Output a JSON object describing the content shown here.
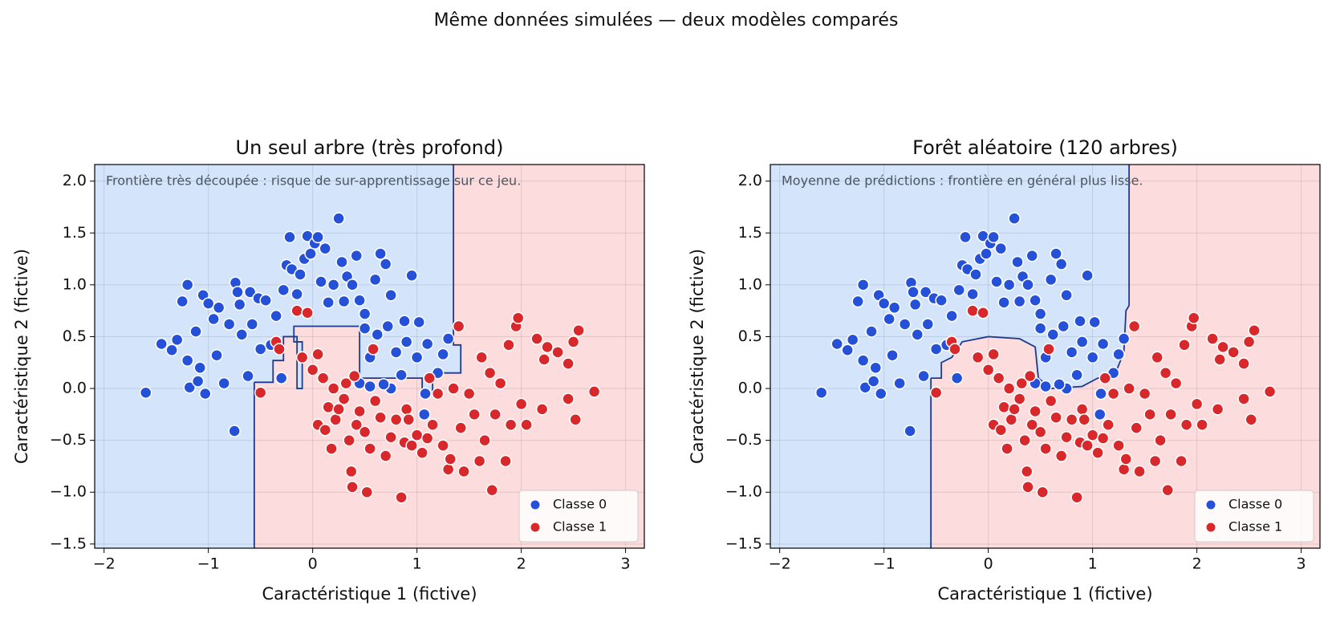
{
  "title": "Même données simulées — deux modèles comparés",
  "chart_data": [
    {
      "type": "scatter",
      "title": "Un seul arbre (très profond)",
      "x_label": "Caractéristique 1 (fictive)",
      "y_label": "Caractéristique 2 (fictive)",
      "annotation": "Frontière très découpée : risque de sur-apprentissage sur ce jeu.",
      "xlim": [
        -2.09,
        3.18
      ],
      "ylim": [
        -1.54,
        2.16
      ],
      "xticks": [
        {
          "value": -2,
          "label": "−2"
        },
        {
          "value": -1,
          "label": "−1"
        },
        0,
        1,
        2,
        3
      ],
      "yticks": [
        {
          "value": -1.5,
          "label": "−1.5"
        },
        {
          "value": -1,
          "label": "−1.0"
        },
        {
          "value": -0.5,
          "label": "−0.5"
        },
        {
          "value": 0,
          "label": "0.0"
        },
        0.5,
        {
          "value": 1,
          "label": "1.0"
        },
        1.5,
        {
          "value": 2,
          "label": "2.0"
        }
      ],
      "grid": true,
      "legend": "lower right",
      "region_colors": [
        "#d4e5fb",
        "#fcdcdc"
      ],
      "boundary": {
        "color": "#1f3a8a",
        "x": [
          -0.56,
          -0.38,
          -0.38,
          -0.28,
          -0.28,
          -0.15,
          -0.15,
          -0.1,
          -0.1,
          -0.18,
          -0.18,
          0.45,
          0.45,
          1.05,
          1.05,
          1.15,
          1.15,
          1.42,
          1.42,
          1.35,
          1.35
        ],
        "y": [
          0.06,
          0.06,
          0.27,
          0.27,
          0.5,
          0.5,
          0.0,
          0.0,
          0.45,
          0.45,
          0.6,
          0.6,
          0.1,
          0.1,
          -0.05,
          -0.05,
          0.15,
          0.15,
          0.42,
          0.42,
          0.6
        ]
      },
      "series": [
        {
          "name": "Classe 0",
          "color": "#2550d8",
          "x": [
            -1.6,
            -1.45,
            -1.35,
            -1.3,
            -1.25,
            -1.2,
            -1.2,
            -1.18,
            -1.12,
            -1.1,
            -1.08,
            -1.05,
            -1.03,
            -1.0,
            -0.95,
            -0.92,
            -0.9,
            -0.85,
            -0.8,
            -0.75,
            -0.74,
            -0.72,
            -0.7,
            -0.68,
            -0.62,
            -0.6,
            -0.58,
            -0.52,
            -0.5,
            -0.45,
            -0.4,
            -0.35,
            -0.3,
            -0.28,
            -0.25,
            -0.22,
            -0.2,
            -0.15,
            -0.12,
            -0.08,
            -0.05,
            -0.02,
            0.02,
            0.05,
            0.08,
            0.12,
            0.15,
            0.2,
            0.25,
            0.28,
            0.3,
            0.33,
            0.38,
            0.42,
            0.45,
            0.5,
            0.55,
            0.6,
            0.62,
            0.65,
            0.7,
            0.72,
            0.75,
            0.8,
            0.85,
            0.88,
            0.9,
            0.95,
            1.0,
            1.02,
            1.08,
            1.1,
            1.2,
            1.25,
            1.3,
            0.45,
            0.55,
            0.75,
            0.5,
            0.68,
            1.07
          ],
          "values": [
            -0.04,
            0.43,
            0.37,
            0.47,
            0.84,
            1.0,
            0.27,
            0.01,
            0.55,
            0.07,
            0.2,
            0.9,
            -0.05,
            0.82,
            0.67,
            0.32,
            0.78,
            0.05,
            0.62,
            -0.41,
            1.02,
            0.93,
            0.81,
            0.52,
            0.12,
            0.93,
            0.62,
            0.87,
            0.38,
            0.85,
            0.42,
            0.7,
            0.1,
            0.95,
            1.19,
            1.46,
            1.15,
            0.91,
            1.1,
            1.25,
            1.47,
            1.3,
            1.4,
            1.46,
            1.03,
            1.35,
            0.83,
            1.0,
            1.64,
            1.22,
            0.84,
            1.08,
            1.0,
            1.28,
            0.85,
            0.72,
            0.3,
            1.05,
            0.52,
            1.3,
            1.2,
            0.6,
            0.9,
            0.35,
            0.13,
            0.65,
            0.45,
            1.09,
            0.3,
            0.64,
            -0.05,
            0.43,
            0.15,
            0.33,
            0.48,
            0.05,
            0.02,
            0.0,
            0.58,
            0.04,
            -0.25
          ]
        },
        {
          "name": "Classe 1",
          "color": "#d9282b",
          "x": [
            -0.5,
            -0.35,
            -0.32,
            -0.15,
            -0.05,
            -0.1,
            0.0,
            0.05,
            0.05,
            0.1,
            0.12,
            0.15,
            0.18,
            0.2,
            0.22,
            0.25,
            0.3,
            0.32,
            0.35,
            0.37,
            0.38,
            0.4,
            0.42,
            0.45,
            0.5,
            0.52,
            0.55,
            0.58,
            0.6,
            0.65,
            0.7,
            0.75,
            0.8,
            0.85,
            0.88,
            0.9,
            0.95,
            1.0,
            1.05,
            1.1,
            1.12,
            1.15,
            1.2,
            1.25,
            1.3,
            1.35,
            1.4,
            1.42,
            1.45,
            1.5,
            1.55,
            1.6,
            1.62,
            1.65,
            1.7,
            1.72,
            1.75,
            1.8,
            1.85,
            1.88,
            1.9,
            1.95,
            1.97,
            2.0,
            2.05,
            2.15,
            2.22,
            2.25,
            2.35,
            2.45,
            2.5,
            2.45,
            2.52,
            2.55,
            2.7,
            1.32,
            0.92,
            2.2
          ],
          "values": [
            -0.04,
            0.45,
            0.38,
            0.75,
            0.73,
            0.3,
            0.18,
            0.33,
            -0.35,
            0.1,
            -0.4,
            -0.18,
            -0.58,
            0.0,
            -0.3,
            -0.2,
            -0.1,
            0.05,
            -0.5,
            -0.8,
            -0.95,
            0.12,
            -0.35,
            -0.22,
            -0.42,
            -1.0,
            -0.58,
            0.38,
            -0.12,
            -0.28,
            -0.65,
            -0.47,
            -0.3,
            -1.05,
            -0.52,
            -0.2,
            -0.55,
            -0.45,
            -0.62,
            -0.48,
            0.1,
            -0.35,
            -0.05,
            -0.55,
            -0.78,
            0.0,
            0.6,
            -0.38,
            -0.8,
            -0.05,
            -0.25,
            -0.7,
            0.3,
            -0.5,
            0.15,
            -0.98,
            -0.25,
            0.05,
            -0.7,
            0.42,
            -0.35,
            0.6,
            0.68,
            -0.15,
            -0.35,
            0.48,
            0.28,
            0.4,
            0.35,
            0.24,
            0.45,
            -0.1,
            -0.3,
            0.56,
            -0.03,
            -0.68,
            -0.3,
            -0.2
          ]
        }
      ]
    },
    {
      "type": "scatter",
      "title": "Forêt aléatoire (120 arbres)",
      "x_label": "Caractéristique 1 (fictive)",
      "y_label": "Caractéristique 2 (fictive)",
      "annotation": "Moyenne de prédictions : frontière en général plus lisse.",
      "xlim": [
        -2.09,
        3.18
      ],
      "ylim": [
        -1.54,
        2.16
      ],
      "xticks": [
        {
          "value": -2,
          "label": "−2"
        },
        {
          "value": -1,
          "label": "−1"
        },
        0,
        1,
        2,
        3
      ],
      "yticks": [
        {
          "value": -1.5,
          "label": "−1.5"
        },
        {
          "value": -1,
          "label": "−1.0"
        },
        {
          "value": -0.5,
          "label": "−0.5"
        },
        {
          "value": 0,
          "label": "0.0"
        },
        0.5,
        {
          "value": 1,
          "label": "1.0"
        },
        1.5,
        {
          "value": 2,
          "label": "2.0"
        }
      ],
      "grid": true,
      "legend": "lower right",
      "region_colors": [
        "#d4e5fb",
        "#fcdcdc"
      ],
      "boundary": {
        "color": "#1f3a8a",
        "x": [
          -0.55,
          -0.45,
          -0.45,
          -0.35,
          -0.25,
          0.0,
          0.3,
          0.45,
          0.48,
          0.6,
          0.9,
          1.05,
          1.2,
          1.3,
          1.32,
          1.35
        ],
        "y": [
          0.1,
          0.1,
          0.25,
          0.3,
          0.45,
          0.5,
          0.48,
          0.4,
          0.1,
          0.0,
          0.02,
          0.1,
          0.1,
          0.35,
          0.75,
          0.8
        ]
      },
      "series": [
        {
          "name": "Classe 0",
          "color": "#2550d8",
          "x": [
            -1.6,
            -1.45,
            -1.35,
            -1.3,
            -1.25,
            -1.2,
            -1.2,
            -1.18,
            -1.12,
            -1.1,
            -1.08,
            -1.05,
            -1.03,
            -1.0,
            -0.95,
            -0.92,
            -0.9,
            -0.85,
            -0.8,
            -0.75,
            -0.74,
            -0.72,
            -0.7,
            -0.68,
            -0.62,
            -0.6,
            -0.58,
            -0.52,
            -0.5,
            -0.45,
            -0.4,
            -0.35,
            -0.3,
            -0.28,
            -0.25,
            -0.22,
            -0.2,
            -0.15,
            -0.12,
            -0.08,
            -0.05,
            -0.02,
            0.02,
            0.05,
            0.08,
            0.12,
            0.15,
            0.2,
            0.25,
            0.28,
            0.3,
            0.33,
            0.38,
            0.42,
            0.45,
            0.5,
            0.55,
            0.6,
            0.62,
            0.65,
            0.7,
            0.72,
            0.75,
            0.8,
            0.85,
            0.88,
            0.9,
            0.95,
            1.0,
            1.02,
            1.08,
            1.1,
            1.2,
            1.25,
            1.3,
            0.45,
            0.55,
            0.75,
            0.5,
            0.68,
            1.07
          ],
          "values": [
            -0.04,
            0.43,
            0.37,
            0.47,
            0.84,
            1.0,
            0.27,
            0.01,
            0.55,
            0.07,
            0.2,
            0.9,
            -0.05,
            0.82,
            0.67,
            0.32,
            0.78,
            0.05,
            0.62,
            -0.41,
            1.02,
            0.93,
            0.81,
            0.52,
            0.12,
            0.93,
            0.62,
            0.87,
            0.38,
            0.85,
            0.42,
            0.7,
            0.1,
            0.95,
            1.19,
            1.46,
            1.15,
            0.91,
            1.1,
            1.25,
            1.47,
            1.3,
            1.4,
            1.46,
            1.03,
            1.35,
            0.83,
            1.0,
            1.64,
            1.22,
            0.84,
            1.08,
            1.0,
            1.28,
            0.85,
            0.72,
            0.3,
            1.05,
            0.52,
            1.3,
            1.2,
            0.6,
            0.9,
            0.35,
            0.13,
            0.65,
            0.45,
            1.09,
            0.3,
            0.64,
            -0.05,
            0.43,
            0.15,
            0.33,
            0.48,
            0.05,
            0.02,
            0.0,
            0.58,
            0.04,
            -0.25
          ]
        },
        {
          "name": "Classe 1",
          "color": "#d9282b",
          "x": [
            -0.5,
            -0.35,
            -0.32,
            -0.15,
            -0.05,
            -0.1,
            0.0,
            0.05,
            0.05,
            0.1,
            0.12,
            0.15,
            0.18,
            0.2,
            0.22,
            0.25,
            0.3,
            0.32,
            0.35,
            0.37,
            0.38,
            0.4,
            0.42,
            0.45,
            0.5,
            0.52,
            0.55,
            0.58,
            0.6,
            0.65,
            0.7,
            0.75,
            0.8,
            0.85,
            0.88,
            0.9,
            0.95,
            1.0,
            1.05,
            1.1,
            1.12,
            1.15,
            1.2,
            1.25,
            1.3,
            1.35,
            1.4,
            1.42,
            1.45,
            1.5,
            1.55,
            1.6,
            1.62,
            1.65,
            1.7,
            1.72,
            1.75,
            1.8,
            1.85,
            1.88,
            1.9,
            1.95,
            1.97,
            2.0,
            2.05,
            2.15,
            2.22,
            2.25,
            2.35,
            2.45,
            2.5,
            2.45,
            2.52,
            2.55,
            2.7,
            1.32,
            0.92,
            2.2
          ],
          "values": [
            -0.04,
            0.45,
            0.38,
            0.75,
            0.73,
            0.3,
            0.18,
            0.33,
            -0.35,
            0.1,
            -0.4,
            -0.18,
            -0.58,
            0.0,
            -0.3,
            -0.2,
            -0.1,
            0.05,
            -0.5,
            -0.8,
            -0.95,
            0.12,
            -0.35,
            -0.22,
            -0.42,
            -1.0,
            -0.58,
            0.38,
            -0.12,
            -0.28,
            -0.65,
            -0.47,
            -0.3,
            -1.05,
            -0.52,
            -0.2,
            -0.55,
            -0.45,
            -0.62,
            -0.48,
            0.1,
            -0.35,
            -0.05,
            -0.55,
            -0.78,
            0.0,
            0.6,
            -0.38,
            -0.8,
            -0.05,
            -0.25,
            -0.7,
            0.3,
            -0.5,
            0.15,
            -0.98,
            -0.25,
            0.05,
            -0.7,
            0.42,
            -0.35,
            0.6,
            0.68,
            -0.15,
            -0.35,
            0.48,
            0.28,
            0.4,
            0.35,
            0.24,
            0.45,
            -0.1,
            -0.3,
            0.56,
            -0.03,
            -0.68,
            -0.3,
            -0.2
          ]
        }
      ]
    }
  ]
}
